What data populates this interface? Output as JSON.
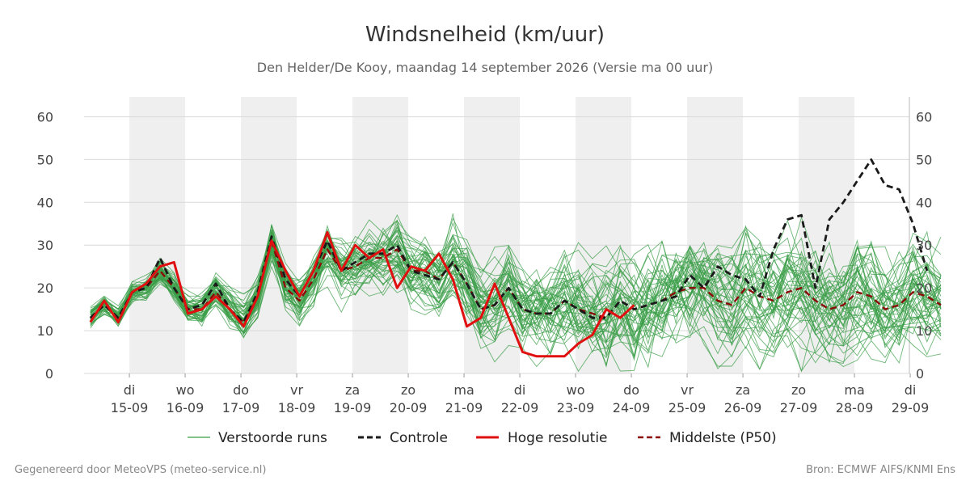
{
  "chart_data": {
    "type": "line",
    "title": "Windsnelheid (km/uur)",
    "subtitle": "Den Helder/De Kooy, maandag 14 september 2026 (Versie ma 00 uur)",
    "ylim": [
      0,
      65
    ],
    "yticks": [
      0,
      10,
      20,
      30,
      40,
      50,
      60
    ],
    "x_start_day": 14.3,
    "x_end_day": 29.0,
    "x_step_days": 0.25,
    "x_ticks": [
      {
        "day": 15,
        "weekday": "di",
        "date": "15-09"
      },
      {
        "day": 16,
        "weekday": "wo",
        "date": "16-09"
      },
      {
        "day": 17,
        "weekday": "do",
        "date": "17-09"
      },
      {
        "day": 18,
        "weekday": "vr",
        "date": "18-09"
      },
      {
        "day": 19,
        "weekday": "za",
        "date": "19-09"
      },
      {
        "day": 20,
        "weekday": "zo",
        "date": "20-09"
      },
      {
        "day": 21,
        "weekday": "ma",
        "date": "21-09"
      },
      {
        "day": 22,
        "weekday": "di",
        "date": "22-09"
      },
      {
        "day": 23,
        "weekday": "wo",
        "date": "23-09"
      },
      {
        "day": 24,
        "weekday": "do",
        "date": "24-09"
      },
      {
        "day": 25,
        "weekday": "vr",
        "date": "25-09"
      },
      {
        "day": 26,
        "weekday": "za",
        "date": "26-09"
      },
      {
        "day": 27,
        "weekday": "zo",
        "date": "27-09"
      },
      {
        "day": 28,
        "weekday": "ma",
        "date": "28-09"
      },
      {
        "day": 29,
        "weekday": "di",
        "date": "29-09"
      }
    ],
    "shaded_days": [
      15,
      17,
      19,
      21,
      23,
      25,
      27
    ],
    "grid": true,
    "ensemble_member_count": 50,
    "series": [
      {
        "name": "Controle",
        "color": "#1a1a1a",
        "style": "dashed",
        "values": [
          13,
          16,
          13,
          19,
          20,
          27,
          20,
          15,
          16,
          21,
          15,
          12,
          19,
          32,
          22,
          18,
          24,
          31,
          24,
          26,
          28,
          28,
          30,
          24,
          23,
          22,
          26,
          21,
          15,
          16,
          20,
          15,
          14,
          14,
          17,
          15,
          13,
          13,
          17,
          15,
          16,
          17,
          18,
          23,
          20,
          25,
          23,
          22,
          18,
          29,
          36,
          37,
          20,
          36,
          40,
          45,
          50,
          44,
          43,
          35,
          24
        ]
      },
      {
        "name": "Hoge resolutie",
        "color": "#e01010",
        "style": "solid",
        "values": [
          12,
          17,
          12,
          19,
          21,
          25,
          26,
          14,
          15,
          18,
          15,
          11,
          18,
          31,
          24,
          18,
          24,
          33,
          24,
          30,
          27,
          29,
          20,
          25,
          24,
          28,
          22,
          11,
          13,
          21,
          13,
          5,
          4,
          4,
          4,
          7,
          9,
          15,
          13,
          16
        ]
      },
      {
        "name": "Middelste (P50)",
        "color": "#8b0a0a",
        "style": "dashed",
        "values": [
          13,
          16,
          13,
          19,
          20,
          24,
          20,
          15,
          15,
          19,
          15,
          12,
          18,
          31,
          20,
          17,
          22,
          29,
          24,
          25,
          27,
          27,
          29,
          24,
          24,
          22,
          26,
          21,
          15,
          16,
          20,
          15,
          14,
          14,
          17,
          15,
          14,
          13,
          17,
          15,
          16,
          17,
          19,
          20,
          20,
          17,
          16,
          20,
          18,
          17,
          19,
          20,
          17,
          15,
          16,
          19,
          18,
          15,
          16,
          19,
          18,
          16
        ]
      }
    ],
    "legend": {
      "position": "bottom",
      "entries": [
        {
          "label": "Verstoorde runs",
          "color": "#3a9e47",
          "style": "thin"
        },
        {
          "label": "Controle",
          "color": "#1a1a1a",
          "style": "dashed"
        },
        {
          "label": "Hoge resolutie",
          "color": "#e01010",
          "style": "solid"
        },
        {
          "label": "Middelste (P50)",
          "color": "#8b0a0a",
          "style": "dashed"
        }
      ]
    }
  },
  "footer": {
    "left": "Gegenereerd door MeteoVPS (meteo-service.nl)",
    "right": "Bron: ECMWF AIFS/KNMI Ens"
  },
  "colors": {
    "ensemble": "#3a9e47",
    "band": "#efefef",
    "grid": "#d9d9d9"
  }
}
